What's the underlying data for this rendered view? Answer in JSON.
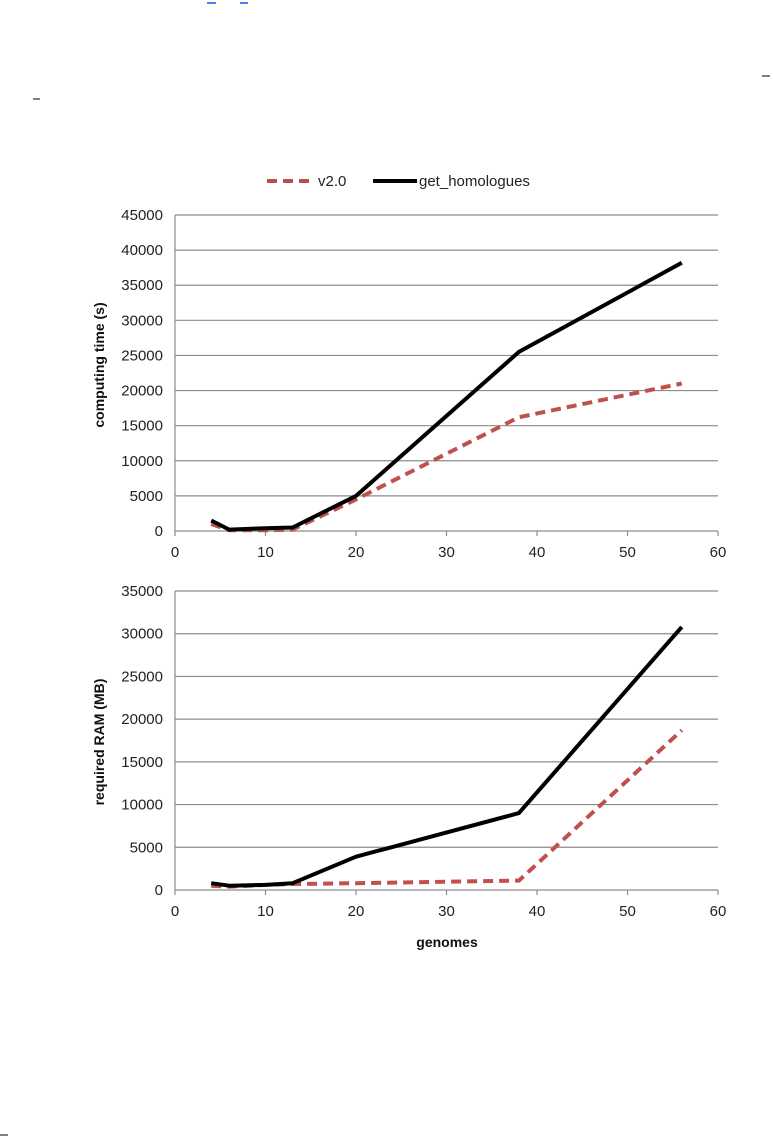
{
  "colors": {
    "v20": "#c0504d",
    "get_homologues": "#000000"
  },
  "legend": [
    {
      "name": "v2.0",
      "style": "dashed",
      "color": "#c0504d"
    },
    {
      "name": "get_homologues",
      "style": "solid",
      "color": "#000000"
    }
  ],
  "chart_data": [
    {
      "type": "line",
      "title": "",
      "xlabel": "",
      "ylabel": "computing  time (s)",
      "xlim": [
        0,
        60
      ],
      "ylim": [
        0,
        45000
      ],
      "xticks": [
        "0",
        "10",
        "20",
        "30",
        "40",
        "50",
        "60"
      ],
      "yticks": [
        "0",
        "5000",
        "10000",
        "15000",
        "20000",
        "25000",
        "30000",
        "35000",
        "40000",
        "45000"
      ],
      "grid": true,
      "series": [
        {
          "name": "v2.0",
          "style": "dashed",
          "x": [
            4,
            6,
            10,
            13,
            20,
            38,
            56
          ],
          "y": [
            1000,
            100,
            100,
            200,
            4500,
            16200,
            21000
          ]
        },
        {
          "name": "get_homologues",
          "style": "solid",
          "x": [
            4,
            6,
            10,
            13,
            20,
            38,
            56
          ],
          "y": [
            1500,
            200,
            400,
            500,
            5000,
            25500,
            38200
          ]
        }
      ]
    },
    {
      "type": "line",
      "title": "",
      "xlabel": "genomes",
      "ylabel": "required  RAM (MB)",
      "xlim": [
        0,
        60
      ],
      "ylim": [
        0,
        35000
      ],
      "xticks": [
        "0",
        "10",
        "20",
        "30",
        "40",
        "50",
        "60"
      ],
      "yticks": [
        "0",
        "5000",
        "10000",
        "15000",
        "20000",
        "25000",
        "30000",
        "35000"
      ],
      "grid": true,
      "series": [
        {
          "name": "v2.0",
          "style": "dashed",
          "x": [
            4,
            6,
            10,
            13,
            20,
            38,
            56
          ],
          "y": [
            500,
            400,
            600,
            700,
            800,
            1100,
            18700
          ]
        },
        {
          "name": "get_homologues",
          "style": "solid",
          "x": [
            4,
            6,
            10,
            13,
            20,
            38,
            56
          ],
          "y": [
            800,
            500,
            600,
            800,
            3900,
            9000,
            30800
          ]
        }
      ]
    }
  ]
}
